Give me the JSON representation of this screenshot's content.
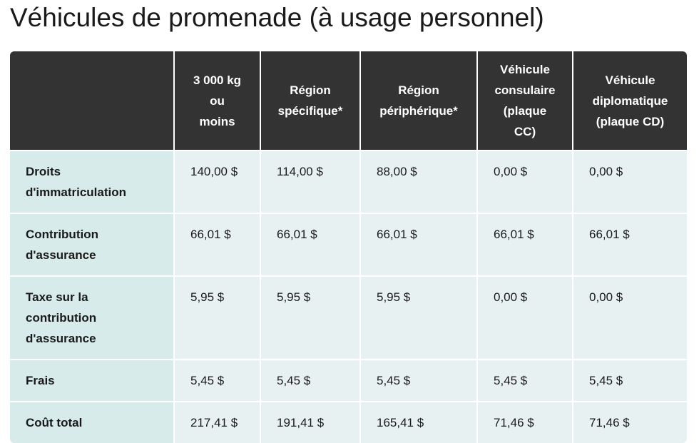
{
  "title": "Véhicules de promenade (à usage personnel)",
  "colors": {
    "header_bg": "#333333",
    "row_header_bg": "#d7ebea",
    "cell_bg": "#e8f1f1",
    "text": "#1a1a1a"
  },
  "table": {
    "corner": "",
    "columns": [
      [
        "3 000 kg",
        "ou",
        "moins"
      ],
      [
        "Région",
        "spécifique*"
      ],
      [
        "Région",
        "périphérique*"
      ],
      [
        "Véhicule",
        "consulaire",
        "(plaque",
        "CC)"
      ],
      [
        "Véhicule",
        "diplomatique",
        "(plaque CD)"
      ]
    ],
    "rows": [
      {
        "label": [
          "Droits",
          "d'immatriculation"
        ],
        "values": [
          "140,00 $",
          "114,00 $",
          "88,00 $",
          "0,00 $",
          "0,00 $"
        ]
      },
      {
        "label": [
          "Contribution",
          "d'assurance"
        ],
        "values": [
          "66,01 $",
          "66,01 $",
          "66,01 $",
          "66,01 $",
          "66,01 $"
        ]
      },
      {
        "label": [
          "Taxe sur la",
          "contribution",
          "d'assurance"
        ],
        "values": [
          "5,95 $",
          "5,95 $",
          "5,95 $",
          "0,00 $",
          "0,00 $"
        ]
      },
      {
        "label": [
          "Frais"
        ],
        "values": [
          "5,45 $",
          "5,45 $",
          "5,45 $",
          "5,45 $",
          "5,45 $"
        ]
      },
      {
        "label": [
          "Coût total"
        ],
        "values": [
          "217,41 $",
          "191,41 $",
          "165,41 $",
          "71,46 $",
          "71,46 $"
        ]
      }
    ]
  }
}
